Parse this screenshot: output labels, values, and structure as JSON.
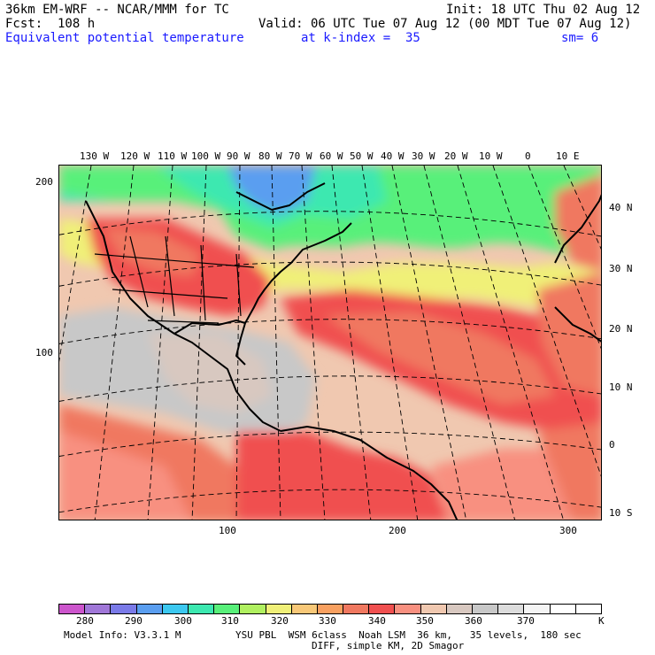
{
  "header": {
    "line1_left": "36km EM-WRF -- NCAR/MMM for TC",
    "line1_right": "Init: 18 UTC Thu 02 Aug 12",
    "line2_left": "Fcst:  108 h",
    "line2_right": "Valid: 06 UTC Tue 07 Aug 12 (00 MDT Tue 07 Aug 12)",
    "line3_field": "Equivalent potential temperature",
    "line3_level": "at k-index =  35",
    "line3_smooth": "sm= 6"
  },
  "map": {
    "top_lon_labels": [
      "130 W",
      "120 W",
      "110 W",
      "100 W",
      "90 W",
      "80 W",
      "70 W",
      "60 W",
      "50 W",
      "40 W",
      "30 W",
      "20 W",
      "10 W",
      "0",
      "10 E"
    ],
    "right_lat_labels": [
      "40 N",
      "30 N",
      "20 N",
      "10 N",
      "0",
      "10 S"
    ],
    "left_grid_labels": [
      "200",
      "100"
    ],
    "bottom_grid_labels": [
      "100",
      "200",
      "300"
    ]
  },
  "colorbar": {
    "colors": [
      "#cc55cc",
      "#a077d8",
      "#7a7ae8",
      "#5a9ef0",
      "#3cc8f0",
      "#3ce8b0",
      "#58f07a",
      "#b0f060",
      "#f0f078",
      "#f8c878",
      "#f8a060",
      "#f07860",
      "#f05050",
      "#f89080",
      "#f0c8b0",
      "#d8c8c0",
      "#c8c8c8",
      "#dcdcdc",
      "#f4f4f4",
      "#ffffff",
      "#ffffff"
    ],
    "labels": [
      "280",
      "290",
      "300",
      "310",
      "320",
      "330",
      "340",
      "350",
      "360",
      "370"
    ],
    "unit": "K"
  },
  "footer": {
    "line1_left": "Model Info: V3.3.1 M",
    "line1_right": "YSU PBL  WSM 6class  Noah LSM  36 km,   35 levels,  180 sec",
    "line2": "DIFF, simple KM, 2D Smagor"
  }
}
